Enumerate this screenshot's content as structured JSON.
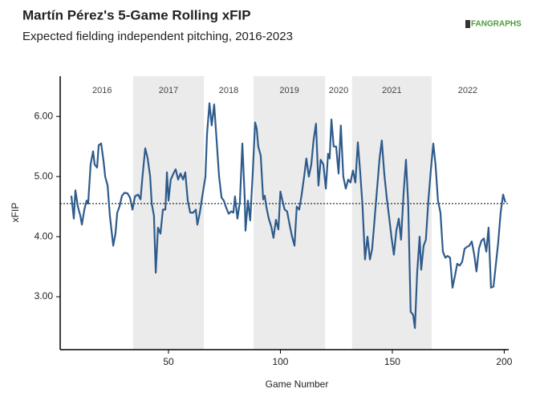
{
  "chart_data": {
    "type": "line",
    "title": "Martín Pérez's 5-Game Rolling xFIP",
    "subtitle": "Expected fielding independent pitching, 2016-2023",
    "logo": "FANGRAPHS",
    "x_label": "Game Number",
    "y_label": "xFIP",
    "color": "#2e5b8c",
    "x": [
      6.6,
      7.7,
      8.4,
      9.5,
      10.6,
      11.3,
      12.4,
      13.4,
      14.1,
      15.2,
      16.3,
      17,
      18.1,
      18.8,
      19.9,
      21,
      21.7,
      22.8,
      23.8,
      25.3,
      26.3,
      27.1,
      28.1,
      29.2,
      30.3,
      31.7,
      32.8,
      33.9,
      35,
      36.4,
      37.5,
      38.5,
      39.6,
      40.7,
      41.8,
      42.5,
      43.5,
      44.3,
      45.3,
      46.4,
      47.5,
      48.6,
      49.3,
      50,
      51,
      52.2,
      53.2,
      54.3,
      55.4,
      56.5,
      57.5,
      58.6,
      59.7,
      61.1,
      62.2,
      62.9,
      64,
      65,
      66.5,
      67.2,
      68.3,
      69.3,
      70.4,
      71.5,
      72.6,
      73.7,
      74.7,
      75.8,
      76.9,
      78,
      79,
      79.7,
      80.8,
      81.9,
      83,
      84.1,
      84.4,
      85.5,
      86.5,
      87.6,
      88.7,
      89.4,
      90.1,
      91.2,
      92.3,
      93,
      93.7,
      94.8,
      95.9,
      96.9,
      98,
      99.1,
      100,
      100.9,
      101.9,
      103,
      104.1,
      105.2,
      106.3,
      107.3,
      108.4,
      109.5,
      110.6,
      111.6,
      112.7,
      113.8,
      114.8,
      115.9,
      117,
      118,
      119.2,
      120.3,
      121.3,
      122,
      122.8,
      123.8,
      124.9,
      126,
      127,
      128.1,
      129.2,
      130.3,
      131.3,
      132.4,
      133.5,
      134.6,
      135.7,
      136.7,
      137.8,
      138.9,
      140,
      141,
      142.1,
      143.2,
      144.3,
      145.3,
      146.4,
      147.5,
      148.5,
      149.6,
      150.7,
      151.8,
      152.9,
      153.9,
      155,
      156.1,
      157.1,
      158.2,
      159.3,
      160.1,
      161.1,
      162.2,
      162.9,
      164,
      165,
      166.1,
      167.2,
      168.3,
      169.3,
      170.4,
      171.5,
      172.6,
      173.7,
      174.7,
      175.8,
      176.9,
      178,
      179,
      180.1,
      181.2,
      182.3,
      183.4,
      184.4,
      185.5,
      186.6,
      187.6,
      188.7,
      189.8,
      190.9,
      192,
      193,
      194.1,
      195.2,
      196.3,
      197.3,
      198.4,
      199.5,
      200.5
    ],
    "values": [
      4.68,
      4.3,
      4.77,
      4.5,
      4.35,
      4.2,
      4.45,
      4.6,
      4.55,
      5.2,
      5.42,
      5.2,
      5.15,
      5.52,
      5.55,
      5.25,
      5.0,
      4.85,
      4.35,
      3.85,
      4.05,
      4.4,
      4.5,
      4.68,
      4.73,
      4.72,
      4.65,
      4.45,
      4.67,
      4.7,
      4.62,
      5.05,
      5.47,
      5.3,
      5.0,
      4.55,
      4.35,
      3.4,
      4.15,
      4.05,
      4.45,
      4.45,
      5.07,
      4.6,
      4.95,
      5.05,
      5.12,
      4.95,
      5.05,
      4.95,
      5.07,
      4.6,
      4.4,
      4.4,
      4.45,
      4.2,
      4.4,
      4.65,
      5.0,
      5.7,
      6.22,
      5.85,
      6.2,
      5.6,
      5.0,
      4.65,
      4.6,
      4.48,
      4.38,
      4.42,
      4.4,
      4.67,
      4.3,
      4.58,
      5.55,
      4.6,
      4.1,
      4.6,
      4.27,
      5.03,
      5.9,
      5.8,
      5.5,
      5.35,
      4.62,
      4.68,
      4.5,
      4.3,
      4.17,
      3.98,
      4.28,
      4.12,
      4.75,
      4.6,
      4.45,
      4.42,
      4.2,
      4.0,
      3.85,
      4.5,
      4.45,
      4.7,
      5.0,
      5.3,
      5.0,
      5.2,
      5.6,
      5.88,
      4.85,
      5.28,
      5.2,
      4.8,
      5.38,
      5.3,
      5.95,
      5.5,
      5.5,
      5.05,
      5.85,
      5.0,
      4.8,
      4.95,
      4.9,
      5.1,
      4.9,
      5.57,
      5.05,
      4.5,
      3.62,
      4.0,
      3.62,
      3.8,
      4.3,
      4.8,
      5.3,
      5.6,
      5.05,
      4.65,
      4.35,
      4.0,
      3.7,
      4.1,
      4.3,
      3.95,
      4.7,
      5.28,
      4.55,
      2.75,
      2.7,
      2.48,
      3.4,
      4.0,
      3.45,
      3.85,
      3.95,
      4.6,
      5.1,
      5.55,
      5.2,
      4.6,
      4.4,
      3.75,
      3.65,
      3.68,
      3.65,
      3.15,
      3.35,
      3.55,
      3.52,
      3.58,
      3.8,
      3.83,
      3.85,
      3.92,
      3.7,
      3.42,
      3.8,
      3.93,
      3.97,
      3.75,
      4.15,
      3.15,
      3.17,
      3.55,
      3.9,
      4.4,
      4.7,
      4.57
    ],
    "reference_line": 4.55,
    "seasons": [
      {
        "label": "2016",
        "start": 6.5,
        "end": 34.2,
        "shaded": false
      },
      {
        "label": "2017",
        "start": 34.2,
        "end": 65.8,
        "shaded": true
      },
      {
        "label": "2018",
        "start": 65.8,
        "end": 88,
        "shaded": false
      },
      {
        "label": "2019",
        "start": 88,
        "end": 120,
        "shaded": true
      },
      {
        "label": "2020",
        "start": 120,
        "end": 132,
        "shaded": false
      },
      {
        "label": "2021",
        "start": 132,
        "end": 167.6,
        "shaded": true
      },
      {
        "label": "2022",
        "start": 167.6,
        "end": 199.8,
        "shaded": false
      }
    ],
    "xlim": [
      1.6,
      202
    ],
    "ylim": [
      2.12,
      6.67
    ],
    "xticks": [
      50,
      100,
      150,
      200
    ],
    "yticks": [
      {
        "value": 3,
        "label": "3.00"
      },
      {
        "value": 4,
        "label": "4.00"
      },
      {
        "value": 5,
        "label": "5.00"
      },
      {
        "value": 6,
        "label": "6.00"
      }
    ]
  }
}
